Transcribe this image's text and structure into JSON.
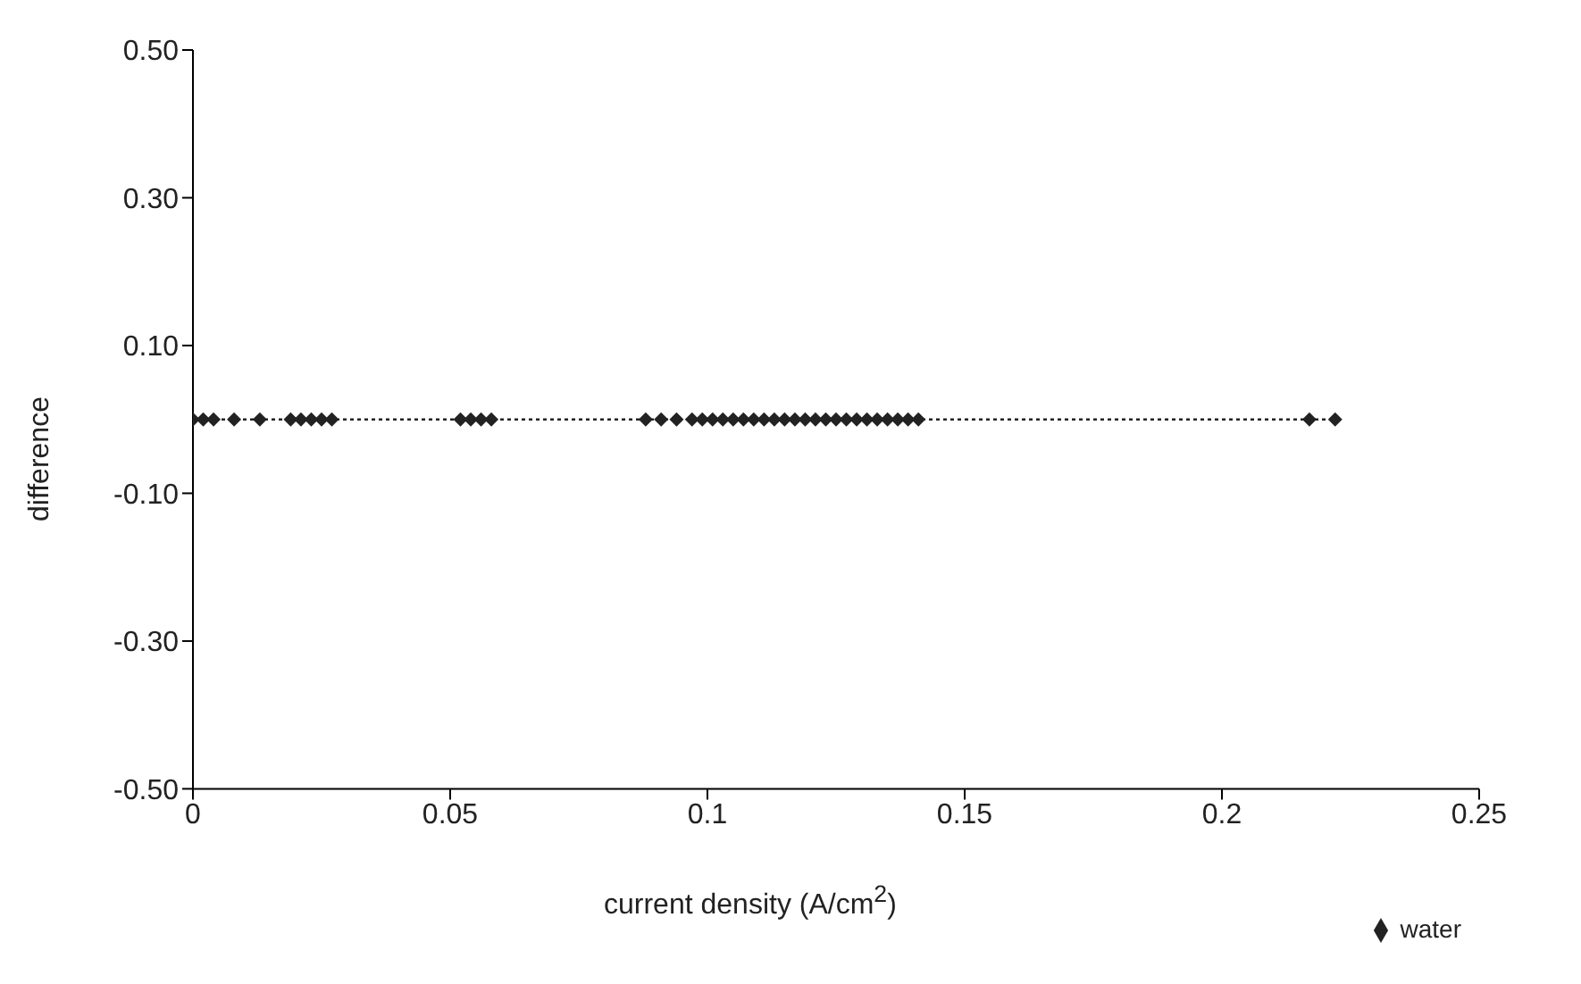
{
  "chart_data": {
    "type": "line",
    "xlabel": "current density (A/cm$^{2}$)",
    "ylabel": "difference",
    "x": [
      0,
      0.002,
      0.004,
      0.008,
      0.013,
      0.019,
      0.021,
      0.023,
      0.025,
      0.027,
      0.052,
      0.054,
      0.056,
      0.058,
      0.088,
      0.091,
      0.094,
      0.097,
      0.099,
      0.101,
      0.103,
      0.105,
      0.107,
      0.109,
      0.111,
      0.113,
      0.115,
      0.117,
      0.119,
      0.121,
      0.123,
      0.125,
      0.127,
      0.129,
      0.131,
      0.133,
      0.135,
      0.137,
      0.139,
      0.141,
      0.217,
      0.222
    ],
    "series": [
      {
        "name": "water",
        "color": "#222222",
        "values": [
          0,
          0,
          0,
          0,
          0,
          0,
          0,
          0,
          0,
          0,
          0,
          0,
          0,
          0,
          0,
          0,
          0,
          0,
          0,
          0,
          0,
          0,
          0,
          0,
          0,
          0,
          0,
          0,
          0,
          0,
          0,
          0,
          0,
          0,
          0,
          0,
          0,
          0,
          0,
          0,
          0,
          0
        ]
      }
    ],
    "xlim": [
      0,
      0.25
    ],
    "xticks": [
      0,
      0.05,
      0.1,
      0.15,
      0.2,
      0.25
    ],
    "ylim": [
      -0.5,
      0.5
    ],
    "yticks": [
      {
        "value": -0.5,
        "label": "-0.50"
      },
      {
        "value": -0.3,
        "label": "-0.30"
      },
      {
        "value": -0.1,
        "label": "-0.10"
      },
      {
        "value": 0.1,
        "label": "0.10"
      },
      {
        "value": 0.3,
        "label": "0.30"
      },
      {
        "value": 0.5,
        "label": "0.50"
      }
    ],
    "grid": false,
    "legend": "bottom right",
    "marker": "diamond",
    "line_style": "dotted"
  }
}
